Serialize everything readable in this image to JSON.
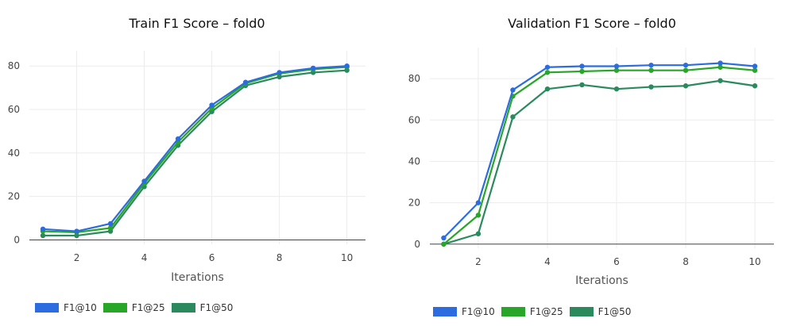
{
  "colors": {
    "F1@10": "#2b6ce0",
    "F1@25": "#27a627",
    "F1@50": "#2a8a5d",
    "grid": "#ececec",
    "axis": "#555555"
  },
  "chart_data": [
    {
      "type": "line",
      "title": "Train F1 Score – fold0",
      "xlabel": "Iterations",
      "ylabel": "",
      "xlim": [
        0.6,
        10.55
      ],
      "ylim": [
        -2,
        87
      ],
      "xticks": [
        2,
        4,
        6,
        8,
        10
      ],
      "yticks": [
        0,
        20,
        40,
        60,
        80
      ],
      "grid": true,
      "legend": "bottom-left",
      "x": [
        1,
        2,
        3,
        4,
        5,
        6,
        7,
        8,
        9,
        10
      ],
      "series": [
        {
          "name": "F1@10",
          "values": [
            5,
            4,
            7.5,
            27,
            46.5,
            62,
            72.5,
            77,
            79,
            80
          ]
        },
        {
          "name": "F1@25",
          "values": [
            4,
            3.5,
            5.5,
            26,
            45,
            60.5,
            72,
            76.5,
            78.5,
            79.5
          ]
        },
        {
          "name": "F1@50",
          "values": [
            2,
            2,
            4,
            24.5,
            43.5,
            59,
            71,
            75,
            77,
            78
          ]
        }
      ]
    },
    {
      "type": "line",
      "title": "Validation F1 Score – fold0",
      "xlabel": "Iterations",
      "ylabel": "",
      "xlim": [
        0.6,
        10.55
      ],
      "ylim": [
        -2,
        95
      ],
      "xticks": [
        2,
        4,
        6,
        8,
        10
      ],
      "yticks": [
        0,
        20,
        40,
        60,
        80
      ],
      "grid": true,
      "legend": "bottom-left",
      "x": [
        1,
        2,
        3,
        4,
        5,
        6,
        7,
        8,
        9,
        10
      ],
      "series": [
        {
          "name": "F1@10",
          "values": [
            3,
            20,
            74.5,
            85.5,
            86,
            86,
            86.5,
            86.5,
            87.5,
            86
          ]
        },
        {
          "name": "F1@25",
          "values": [
            0,
            14,
            71.5,
            83,
            83.5,
            84,
            84,
            84,
            85.5,
            84
          ]
        },
        {
          "name": "F1@50",
          "values": [
            0,
            5,
            61.5,
            75,
            77,
            75,
            76,
            76.5,
            79,
            76.5
          ]
        }
      ]
    }
  ]
}
